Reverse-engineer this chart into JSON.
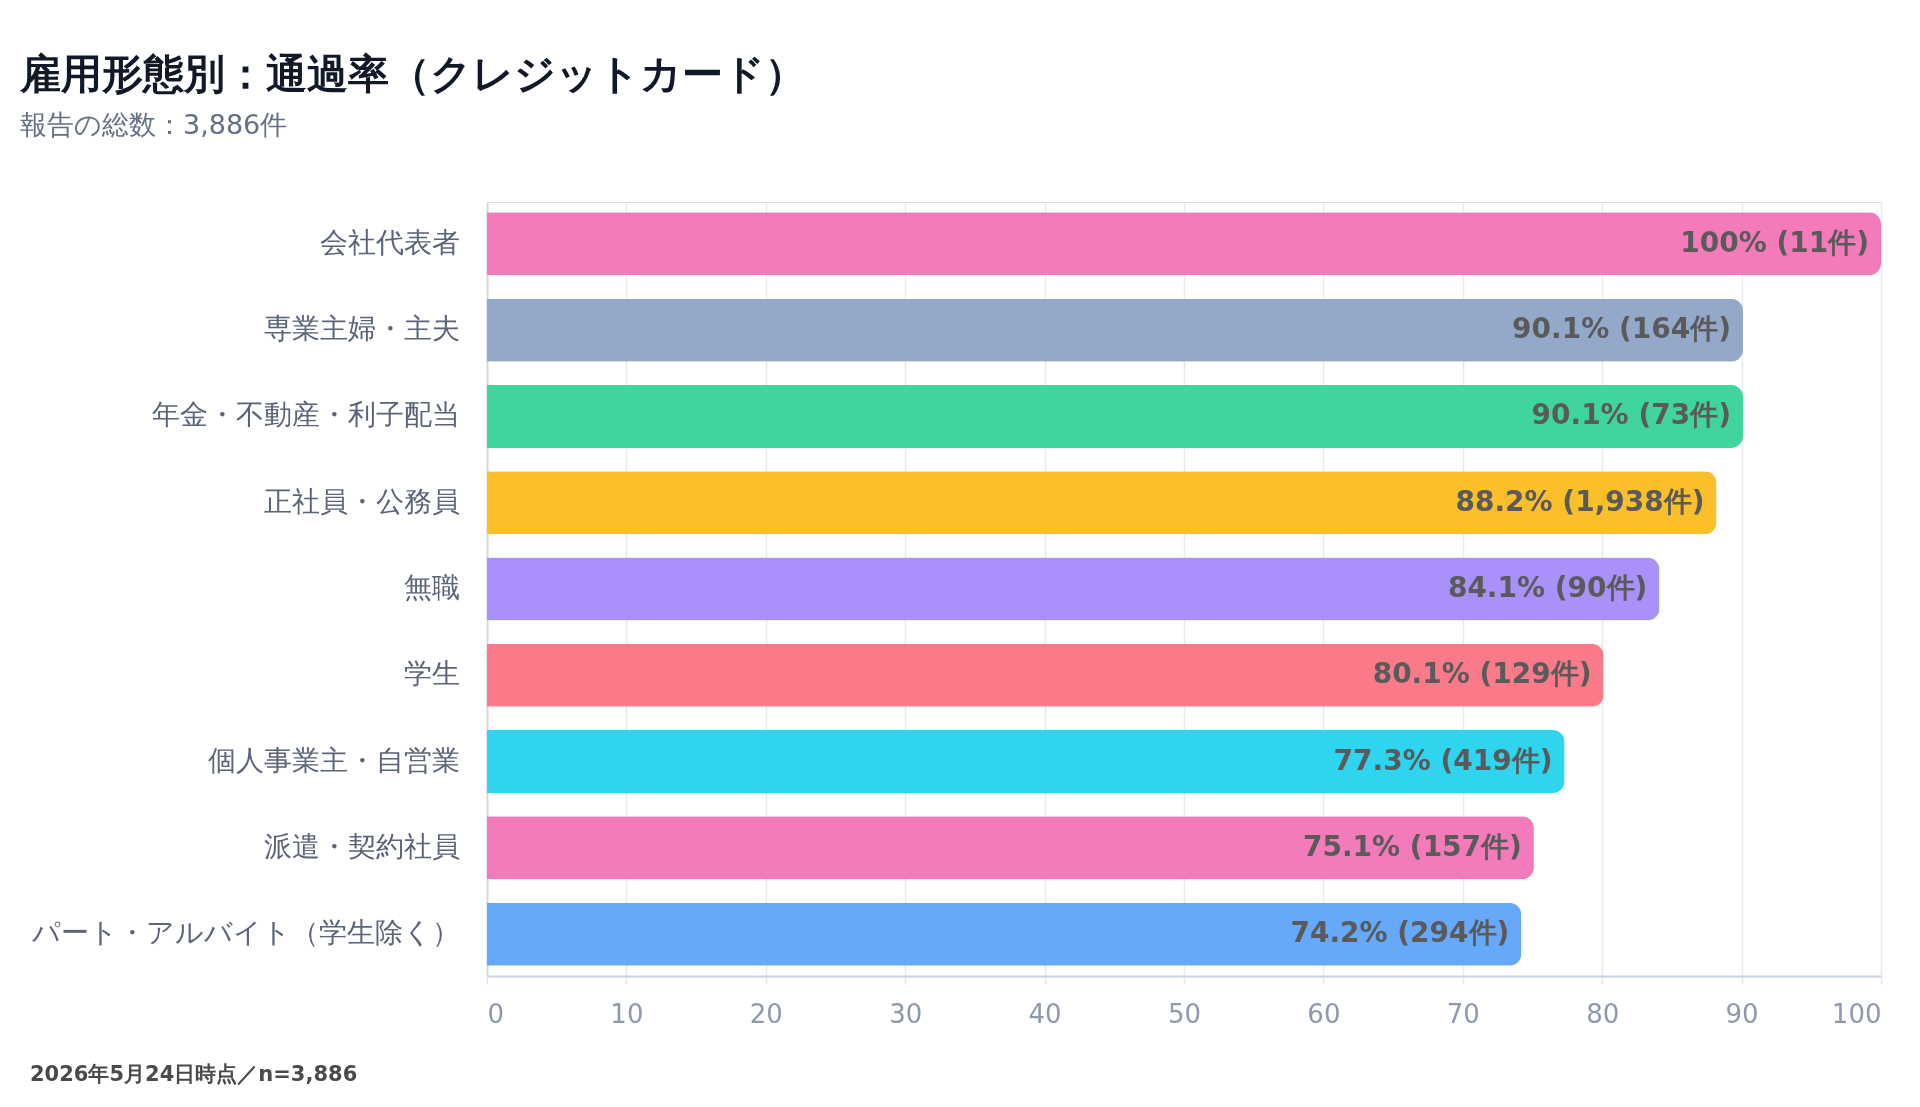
{
  "chart_data": {
    "type": "bar",
    "orientation": "horizontal",
    "title": "雇用形態別：通過率（クレジットカード）",
    "subtitle": "報告の総数：3,886件",
    "categories": [
      "会社代表者",
      "専業主婦・主夫",
      "年金・不動産・利子配当",
      "正社員・公務員",
      "無職",
      "学生",
      "個人事業主・自営業",
      "派遣・契約社員",
      "パート・アルバイト（学生除く）"
    ],
    "values": [
      100,
      90.1,
      90.1,
      88.2,
      84.1,
      80.1,
      77.3,
      75.1,
      74.2
    ],
    "colors": [
      "#f47ab9",
      "#94a9c9",
      "#40d59c",
      "#fbbf2c",
      "#aa91fa",
      "#fb7a8a",
      "#2fd4ee",
      "#f47ab9",
      "#66a8fa"
    ],
    "value_labels": [
      "100% (11件)",
      "90.1% (164件)",
      "90.1% (73件)",
      "88.2% (1,938件)",
      "84.1% (90件)",
      "80.1% (129件)",
      "77.3% (419件)",
      "75.1% (157件)",
      "74.2% (294件)"
    ],
    "xlim": [
      0,
      100
    ],
    "xticks": [
      0,
      10,
      20,
      30,
      40,
      50,
      60,
      70,
      80,
      90,
      100
    ],
    "grid": "x",
    "annotations": [
      "2026年5月24日時点／n=3,886"
    ]
  }
}
